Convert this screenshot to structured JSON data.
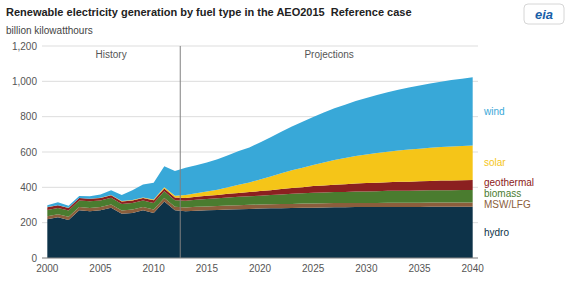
{
  "chart_data": {
    "type": "area",
    "stacked": true,
    "grid": true,
    "title": "Renewable electricity generation by fuel type in the AEO2015  Reference case",
    "y_label": "billion kilowatthours",
    "annotations": [
      {
        "text": "History"
      },
      {
        "text": "Projections"
      },
      {
        "text": "eia"
      }
    ],
    "divider": 2012.5,
    "x": [
      2000,
      2001,
      2002,
      2003,
      2004,
      2005,
      2006,
      2007,
      2008,
      2009,
      2010,
      2011,
      2012,
      2013,
      2014,
      2015,
      2016,
      2017,
      2018,
      2019,
      2020,
      2021,
      2022,
      2023,
      2024,
      2025,
      2026,
      2027,
      2028,
      2029,
      2030,
      2031,
      2032,
      2033,
      2034,
      2035,
      2036,
      2037,
      2038,
      2039,
      2040
    ],
    "series": [
      {
        "name": "hydro",
        "color": "#0d3349",
        "values": [
          220,
          230,
          215,
          270,
          265,
          270,
          285,
          250,
          255,
          270,
          255,
          320,
          270,
          265,
          268,
          270,
          272,
          274,
          276,
          278,
          280,
          281,
          282,
          283,
          284,
          285,
          286,
          287,
          287,
          288,
          288,
          288,
          289,
          289,
          289,
          289,
          290,
          290,
          290,
          290,
          290
        ]
      },
      {
        "name": "MSW/LFG",
        "color": "#8B5E3C",
        "values": [
          17,
          17,
          18,
          18,
          18,
          18,
          18,
          19,
          19,
          19,
          20,
          20,
          20,
          21,
          22,
          22,
          22,
          23,
          23,
          23,
          23,
          23,
          23,
          23,
          24,
          24,
          24,
          24,
          24,
          24,
          24,
          24,
          24,
          24,
          24,
          24,
          24,
          24,
          24,
          24,
          24
        ]
      },
      {
        "name": "biomass",
        "color": "#4a7c2f",
        "values": [
          35,
          36,
          36,
          37,
          38,
          38,
          38,
          37,
          37,
          36,
          37,
          38,
          37,
          38,
          40,
          42,
          44,
          46,
          47,
          48,
          50,
          52,
          55,
          57,
          58,
          60,
          61,
          62,
          63,
          64,
          65,
          66,
          67,
          68,
          68,
          69,
          69,
          70,
          70,
          71,
          71
        ]
      },
      {
        "name": "geothermal",
        "color": "#8B2020",
        "values": [
          15,
          15,
          14,
          14,
          14,
          14,
          14,
          14,
          15,
          15,
          15,
          15,
          16,
          16,
          17,
          18,
          19,
          20,
          22,
          24,
          26,
          28,
          30,
          33,
          35,
          38,
          40,
          42,
          44,
          46,
          47,
          48,
          49,
          50,
          51,
          52,
          53,
          54,
          55,
          55,
          56
        ]
      },
      {
        "name": "solar",
        "color": "#f5c518",
        "values": [
          1,
          1,
          1,
          1,
          1,
          1,
          1,
          2,
          2,
          2,
          4,
          7,
          9,
          16,
          20,
          25,
          30,
          38,
          47,
          55,
          65,
          78,
          90,
          100,
          110,
          120,
          130,
          140,
          148,
          155,
          162,
          168,
          173,
          178,
          182,
          185,
          188,
          190,
          192,
          194,
          196
        ]
      },
      {
        "name": "wind",
        "color": "#38a8d8",
        "values": [
          11,
          17,
          12,
          11,
          14,
          18,
          27,
          34,
          55,
          74,
          95,
          120,
          140,
          155,
          158,
          163,
          172,
          181,
          190,
          198,
          210,
          222,
          235,
          248,
          260,
          271,
          282,
          292,
          302,
          311,
          320,
          328,
          336,
          344,
          351,
          358,
          364,
          370,
          376,
          381,
          386
        ]
      }
    ],
    "xlim": [
      1999.5,
      2040.5
    ],
    "xticks": [
      2000,
      2005,
      2010,
      2015,
      2020,
      2025,
      2030,
      2035,
      2040
    ],
    "ylim": [
      0,
      1200
    ],
    "yticks": [
      0,
      200,
      400,
      600,
      800,
      {
        "value": 1000,
        "label": "1,000"
      },
      {
        "value": 1200,
        "label": "1,200"
      }
    ]
  }
}
